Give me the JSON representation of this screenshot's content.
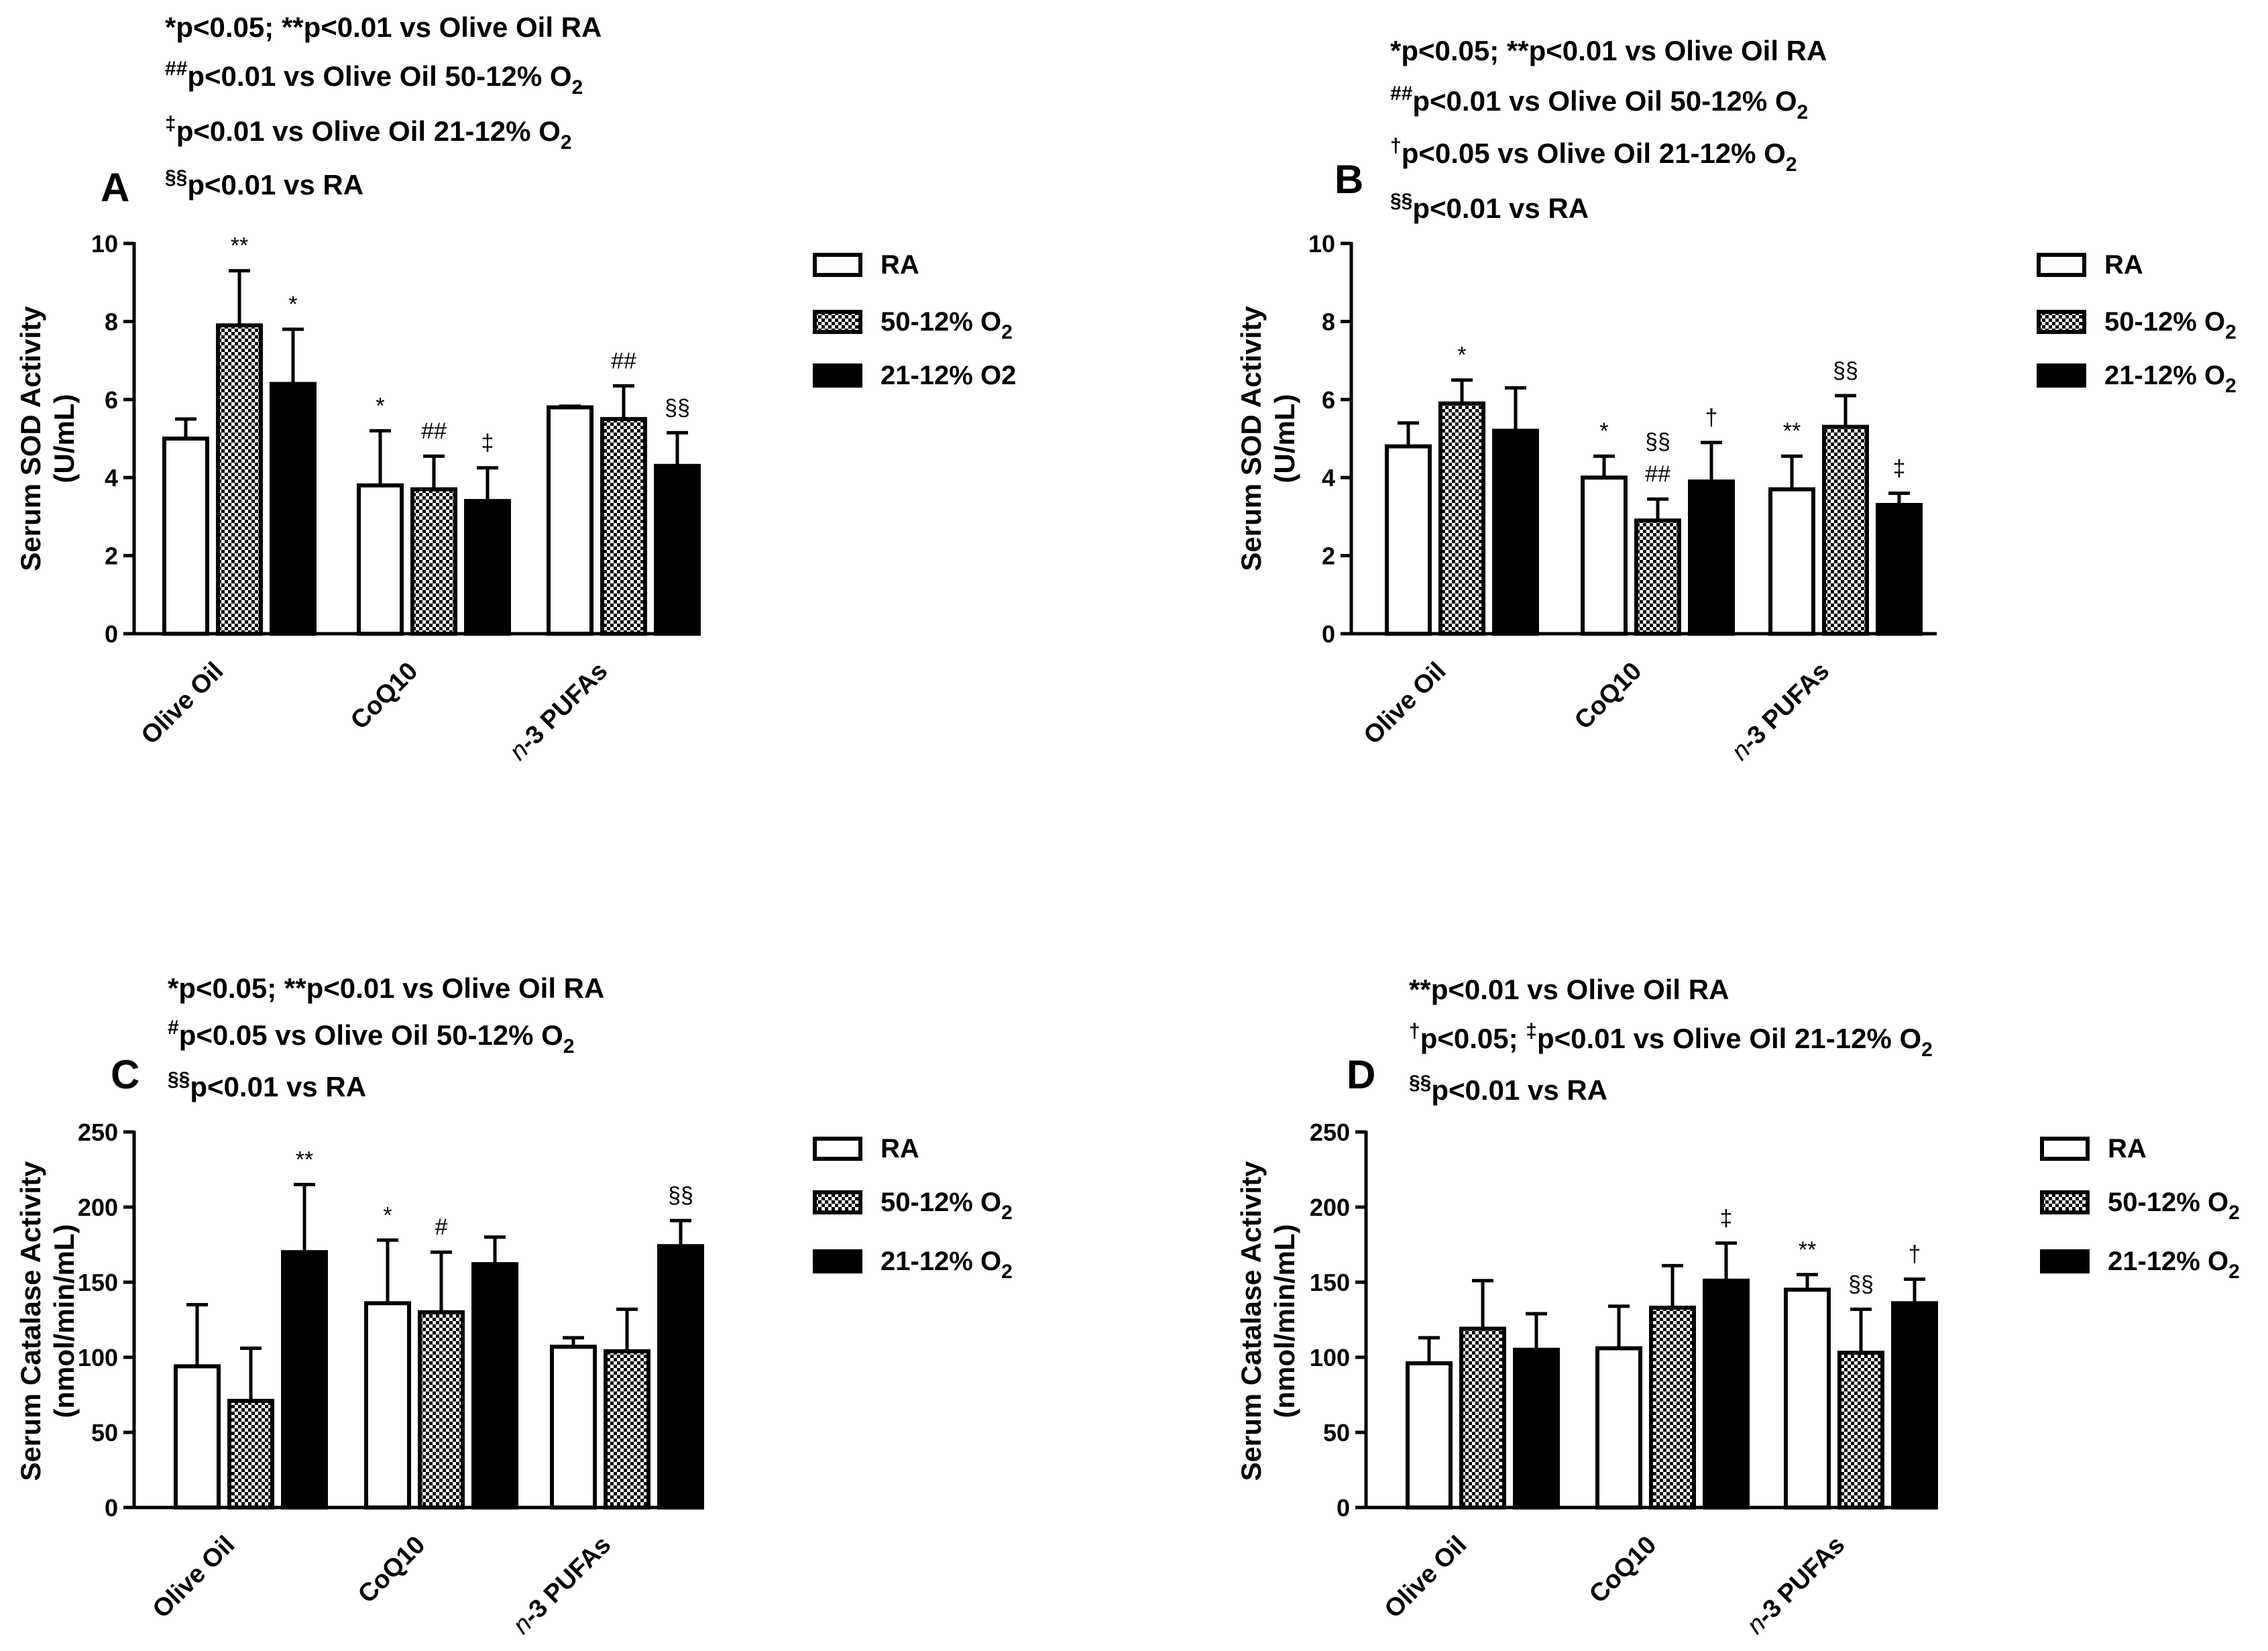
{
  "panels": [
    {
      "letter": "A",
      "notes": [
        [
          "*p<0.05; **p<0.01 vs Olive Oil RA",
          "",
          "",
          ""
        ],
        [
          "",
          "##",
          "p<0.01 vs Olive Oil 50-12% O",
          "2"
        ],
        [
          "",
          "‡",
          "p<0.01 vs Olive Oil 21-12% O",
          "2"
        ],
        [
          "",
          "§§",
          "p<0.01 vs RA",
          ""
        ]
      ],
      "ylabel_lines": [
        "Serum SOD Activity",
        "(U/mL)"
      ],
      "legend": [
        [
          "RA",
          ""
        ],
        [
          "50-12% O",
          "2"
        ],
        [
          "21-12% O2",
          ""
        ]
      ],
      "chart_data": {
        "type": "bar",
        "categories": [
          "Olive Oil",
          "CoQ10",
          "n-3 PUFAs"
        ],
        "ylim": [
          0,
          10
        ],
        "yticks": [
          "0",
          "2",
          "4",
          "6",
          "8",
          "10"
        ],
        "series": [
          {
            "name": "RA",
            "values": [
              5.0,
              3.8,
              5.8
            ],
            "errors": [
              0.5,
              1.4,
              0.03
            ],
            "sig": [
              "",
              "*",
              ""
            ]
          },
          {
            "name": "50-12% O2",
            "values": [
              7.9,
              3.7,
              5.5
            ],
            "errors": [
              1.4,
              0.85,
              0.85
            ],
            "sig": [
              "**",
              "##",
              "##"
            ]
          },
          {
            "name": "21-12% O2",
            "values": [
              6.4,
              3.4,
              4.3
            ],
            "errors": [
              1.4,
              0.85,
              0.85
            ],
            "sig": [
              "*",
              "‡",
              "§§"
            ]
          }
        ]
      }
    },
    {
      "letter": "B",
      "notes": [
        [
          "*p<0.05; **p<0.01 vs Olive Oil RA",
          "",
          "",
          ""
        ],
        [
          "",
          "##",
          "p<0.01 vs Olive Oil 50-12% O",
          "2"
        ],
        [
          "",
          "†",
          "p<0.05 vs Olive Oil 21-12% O",
          "2"
        ],
        [
          "",
          "§§",
          "p<0.01 vs RA",
          ""
        ]
      ],
      "ylabel_lines": [
        "Serum SOD Activity",
        "(U/mL)"
      ],
      "legend": [
        [
          "RA",
          ""
        ],
        [
          "50-12% O",
          "2"
        ],
        [
          "21-12% O",
          "2"
        ]
      ],
      "chart_data": {
        "type": "bar",
        "categories": [
          "Olive Oil",
          "CoQ10",
          "n-3 PUFAs"
        ],
        "ylim": [
          0,
          10
        ],
        "yticks": [
          "0",
          "2",
          "4",
          "6",
          "8",
          "10"
        ],
        "series": [
          {
            "name": "RA",
            "values": [
              4.8,
              4.0,
              3.7
            ],
            "errors": [
              0.6,
              0.55,
              0.85
            ],
            "sig": [
              "",
              "*",
              "**"
            ]
          },
          {
            "name": "50-12% O2",
            "values": [
              5.9,
              2.9,
              5.3
            ],
            "errors": [
              0.6,
              0.55,
              0.8
            ],
            "sig": [
              "*",
              "§§|##",
              "§§"
            ]
          },
          {
            "name": "21-12% O2",
            "values": [
              5.2,
              3.9,
              3.3
            ],
            "errors": [
              1.1,
              1.0,
              0.3
            ],
            "sig": [
              "",
              "†",
              "‡"
            ]
          }
        ]
      }
    },
    {
      "letter": "C",
      "notes": [
        [
          "*p<0.05; **p<0.01 vs Olive Oil RA",
          "",
          "",
          ""
        ],
        [
          "",
          "#",
          "p<0.05 vs Olive Oil 50-12% O",
          "2"
        ],
        [
          "",
          "§§",
          "p<0.01 vs RA",
          ""
        ]
      ],
      "ylabel_lines": [
        "Serum Catalase Activity",
        "(nmol/min/mL)"
      ],
      "legend": [
        [
          "RA",
          ""
        ],
        [
          "50-12% O",
          "2"
        ],
        [
          "21-12% O",
          "2"
        ]
      ],
      "chart_data": {
        "type": "bar",
        "categories": [
          "Olive Oil",
          "CoQ10",
          "n-3 PUFAs"
        ],
        "ylim": [
          0,
          250
        ],
        "yticks": [
          "0",
          "50",
          "100",
          "150",
          "200",
          "250"
        ],
        "series": [
          {
            "name": "RA",
            "values": [
              94,
              136,
              107
            ],
            "errors": [
              41,
              42,
              6
            ],
            "sig": [
              "",
              "*",
              ""
            ]
          },
          {
            "name": "50-12% O2",
            "values": [
              71,
              130,
              104
            ],
            "errors": [
              35,
              40,
              28
            ],
            "sig": [
              "",
              "#",
              ""
            ]
          },
          {
            "name": "21-12% O2",
            "values": [
              170,
              162,
              174
            ],
            "errors": [
              45,
              18,
              17
            ],
            "sig": [
              "**",
              "",
              "§§"
            ]
          }
        ]
      }
    },
    {
      "letter": "D",
      "notes": [
        [
          "**p<0.01 vs Olive Oil RA",
          "",
          "",
          ""
        ],
        [
          "",
          "†",
          "p<0.05; ",
          ""
        ],
        [
          "",
          "§§",
          "p<0.01 vs RA",
          ""
        ]
      ],
      "note_d2_extra": [
        "‡",
        "p<0.01 vs Olive Oil 21-12% O",
        "2"
      ],
      "ylabel_lines": [
        "Serum Catalase Activity",
        "(nmol/min/mL)"
      ],
      "legend": [
        [
          "RA",
          ""
        ],
        [
          "50-12% O",
          "2"
        ],
        [
          "21-12% O",
          "2"
        ]
      ],
      "chart_data": {
        "type": "bar",
        "categories": [
          "Olive Oil",
          "CoQ10",
          "n-3 PUFAs"
        ],
        "ylim": [
          0,
          250
        ],
        "yticks": [
          "0",
          "50",
          "100",
          "150",
          "200",
          "250"
        ],
        "series": [
          {
            "name": "RA",
            "values": [
              96,
              106,
              145
            ],
            "errors": [
              17,
              28,
              10
            ],
            "sig": [
              "",
              "",
              "**"
            ]
          },
          {
            "name": "50-12% O2",
            "values": [
              119,
              133,
              103
            ],
            "errors": [
              32,
              28,
              29
            ],
            "sig": [
              "",
              "",
              "§§"
            ]
          },
          {
            "name": "21-12% O2",
            "values": [
              105,
              151,
              136
            ],
            "errors": [
              24,
              25,
              16
            ],
            "sig": [
              "",
              "‡",
              "†"
            ]
          }
        ]
      }
    }
  ],
  "fill_colors": {
    "ra": "#ffffff",
    "mid": "#555555",
    "high": "#000000"
  }
}
